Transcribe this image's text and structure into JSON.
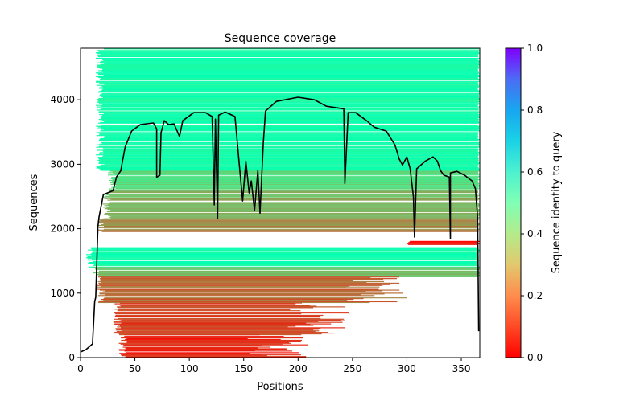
{
  "chart_data": {
    "type": "heatmap",
    "title": "Sequence coverage",
    "xlabel": "Positions",
    "ylabel": "Sequences",
    "xlim": [
      0,
      367
    ],
    "ylim": [
      0,
      4800
    ],
    "xticks": [
      0,
      50,
      100,
      150,
      200,
      250,
      300,
      350
    ],
    "yticks": [
      0,
      1000,
      2000,
      3000,
      4000
    ],
    "grid": false,
    "colorbar": {
      "label": "Sequence identity to query",
      "colormap": "rainbow_r",
      "range": [
        0,
        1
      ],
      "ticks": [
        "0.0",
        "0.2",
        "0.4",
        "0.6",
        "0.8",
        "1.0"
      ]
    },
    "heatmap_bands": [
      {
        "seq_from": 2900,
        "seq_to": 4800,
        "identity": 0.47,
        "x_from": 14,
        "x_to": 367
      },
      {
        "seq_from": 2600,
        "seq_to": 2900,
        "identity": 0.33,
        "x_from": 25,
        "x_to": 367
      },
      {
        "seq_from": 2150,
        "seq_to": 2600,
        "identity": 0.25,
        "x_from": 20,
        "x_to": 367
      },
      {
        "seq_from": 1950,
        "seq_to": 2150,
        "identity": 0.17,
        "x_from": 15,
        "x_to": 367
      },
      {
        "seq_from": 1750,
        "seq_to": 1800,
        "identity": 0.03,
        "x_from": 300,
        "x_to": 367
      },
      {
        "seq_from": 1400,
        "seq_to": 1700,
        "identity": 0.47,
        "x_from": 5,
        "x_to": 367
      },
      {
        "seq_from": 1250,
        "seq_to": 1400,
        "identity": 0.28,
        "x_from": 10,
        "x_to": 367
      },
      {
        "seq_from": 850,
        "seq_to": 1250,
        "identity": 0.14,
        "x_from": 15,
        "x_to": 300
      },
      {
        "seq_from": 350,
        "seq_to": 850,
        "identity": 0.08,
        "x_from": 30,
        "x_to": 250
      },
      {
        "seq_from": 0,
        "seq_to": 350,
        "identity": 0.04,
        "x_from": 35,
        "x_to": 210
      }
    ],
    "series": [
      {
        "name": "coverage",
        "color": "#000000",
        "x": [
          0,
          5,
          11,
          13,
          14,
          16,
          17,
          21,
          30,
          33,
          37,
          41,
          47,
          55,
          67,
          70,
          70,
          73,
          74,
          77,
          81,
          86,
          91,
          94,
          104,
          115,
          121,
          123,
          124,
          126,
          127,
          133,
          142,
          146,
          149,
          152,
          155,
          157,
          160,
          163,
          165,
          168,
          170,
          180,
          200,
          215,
          226,
          242,
          243,
          246,
          253,
          263,
          270,
          281,
          289,
          293,
          296,
          300,
          303,
          306,
          307,
          309,
          317,
          324,
          328,
          331,
          334,
          339,
          340,
          340,
          346,
          353,
          360,
          363,
          365,
          366
        ],
        "y": [
          87,
          125,
          212,
          870,
          935,
          2030,
          2180,
          2530,
          2590,
          2800,
          2900,
          3265,
          3515,
          3615,
          3640,
          3550,
          2800,
          2830,
          3490,
          3675,
          3615,
          3625,
          3430,
          3675,
          3800,
          3800,
          3740,
          2370,
          3700,
          2155,
          3760,
          3810,
          3740,
          2990,
          2430,
          3050,
          2555,
          2740,
          2280,
          2900,
          2240,
          3330,
          3825,
          3975,
          4040,
          4000,
          3900,
          3860,
          2700,
          3800,
          3800,
          3675,
          3575,
          3515,
          3300,
          3080,
          2990,
          3115,
          2930,
          2490,
          1870,
          2930,
          3050,
          3115,
          3050,
          2900,
          2830,
          2800,
          1845,
          2865,
          2890,
          2830,
          2740,
          2620,
          2180,
          410
        ]
      }
    ]
  }
}
